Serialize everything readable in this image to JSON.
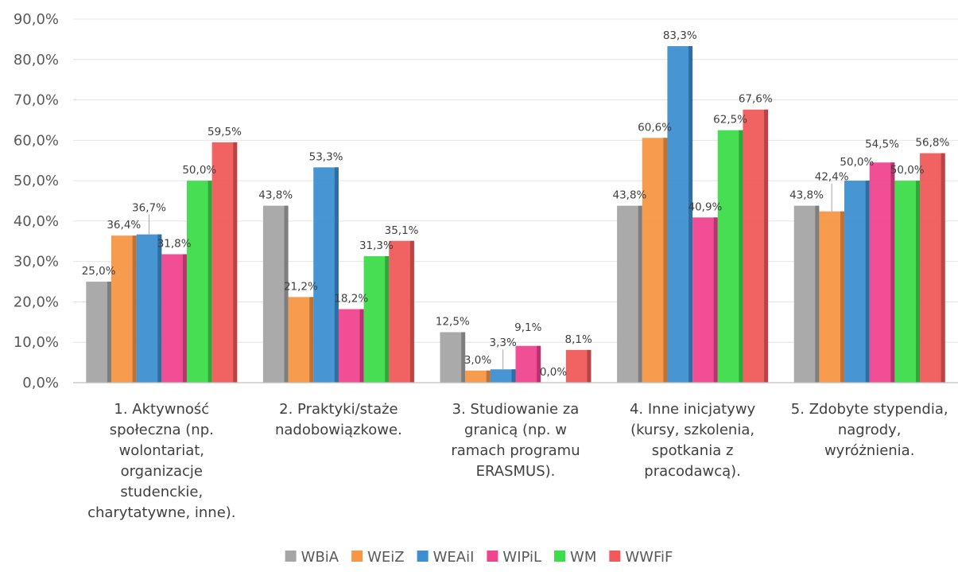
{
  "chart_data": {
    "type": "bar",
    "title": "",
    "xlabel": "",
    "ylabel": "",
    "ylim": [
      0,
      90
    ],
    "yticks": [
      "0,0%",
      "10,0%",
      "20,0%",
      "30,0%",
      "40,0%",
      "50,0%",
      "60,0%",
      "70,0%",
      "80,0%",
      "90,0%"
    ],
    "grid": true,
    "legend_position": "bottom",
    "categories": [
      [
        "1. Aktywność",
        "społeczna (np.",
        "wolontariat,",
        "organizacje",
        "studenckie,",
        "charytatywne, inne)."
      ],
      [
        "2. Praktyki/staże",
        "nadobowiązkowe."
      ],
      [
        "3. Studiowanie za",
        "granicą (np. w",
        "ramach programu",
        "ERASMUS)."
      ],
      [
        "4. Inne inicjatywy",
        "(kursy, szkolenia,",
        "spotkania z",
        "pracodawcą)."
      ],
      [
        "5. Zdobyte stypendia,",
        "nagrody,",
        "wyróżnienia."
      ]
    ],
    "series": [
      {
        "name": "WBiA",
        "color": "#a5a5a5",
        "values": [
          25.0,
          43.8,
          12.5,
          43.8,
          43.8
        ],
        "labels": [
          "25,0%",
          "43,8%",
          "12,5%",
          "43,8%",
          "43,8%"
        ]
      },
      {
        "name": "WEiZ",
        "color": "#f79646",
        "values": [
          36.4,
          21.2,
          3.0,
          60.6,
          42.4
        ],
        "labels": [
          "36,4%",
          "21,2%",
          "3,0%",
          "60,6%",
          "42,4%"
        ]
      },
      {
        "name": "WEAiI",
        "color": "#3d8fd1",
        "values": [
          36.7,
          53.3,
          3.3,
          83.3,
          50.0
        ],
        "labels": [
          "36,7%",
          "53,3%",
          "3,3%",
          "83,3%",
          "50,0%"
        ]
      },
      {
        "name": "WIPiL",
        "color": "#f0448f",
        "values": [
          31.8,
          18.2,
          9.1,
          40.9,
          54.5
        ],
        "labels": [
          "31,8%",
          "18,2%",
          "9,1%",
          "40,9%",
          "54,5%"
        ]
      },
      {
        "name": "WM",
        "color": "#3ddc4a",
        "values": [
          50.0,
          31.3,
          0.0,
          62.5,
          50.0
        ],
        "labels": [
          "50,0%",
          "31,3%",
          "0,0%",
          "62,5%",
          "50,0%"
        ]
      },
      {
        "name": "WWFiF",
        "color": "#f05a5a",
        "values": [
          59.5,
          35.1,
          8.1,
          67.6,
          56.8
        ],
        "labels": [
          "59,5%",
          "35,1%",
          "8,1%",
          "67,6%",
          "56,8%"
        ]
      }
    ]
  }
}
